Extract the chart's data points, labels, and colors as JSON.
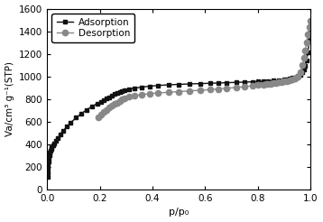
{
  "title": "",
  "xlabel": "p/p₀",
  "ylabel": "Va/cm³ g⁻¹(STP)",
  "xlim": [
    0.0,
    1.0
  ],
  "ylim": [
    0,
    1600
  ],
  "yticks": [
    0,
    200,
    400,
    600,
    800,
    1000,
    1200,
    1400,
    1600
  ],
  "xticks": [
    0.0,
    0.2,
    0.4,
    0.6,
    0.8,
    1.0
  ],
  "adsorption_x": [
    0.001,
    0.002,
    0.003,
    0.004,
    0.005,
    0.007,
    0.009,
    0.011,
    0.013,
    0.015,
    0.018,
    0.022,
    0.027,
    0.033,
    0.04,
    0.05,
    0.06,
    0.075,
    0.09,
    0.11,
    0.13,
    0.15,
    0.17,
    0.19,
    0.205,
    0.215,
    0.225,
    0.235,
    0.245,
    0.255,
    0.265,
    0.275,
    0.285,
    0.295,
    0.31,
    0.33,
    0.36,
    0.39,
    0.42,
    0.46,
    0.5,
    0.54,
    0.58,
    0.62,
    0.65,
    0.68,
    0.72,
    0.75,
    0.78,
    0.8,
    0.82,
    0.84,
    0.86,
    0.88,
    0.9,
    0.91,
    0.92,
    0.93,
    0.94,
    0.95,
    0.96,
    0.97,
    0.975,
    0.98,
    0.985,
    0.99,
    0.995,
    0.998
  ],
  "adsorption_y": [
    115,
    155,
    190,
    220,
    245,
    280,
    305,
    325,
    342,
    356,
    372,
    390,
    410,
    432,
    455,
    488,
    518,
    555,
    592,
    635,
    672,
    705,
    735,
    760,
    778,
    790,
    804,
    818,
    832,
    844,
    856,
    866,
    874,
    880,
    888,
    896,
    906,
    914,
    920,
    926,
    930,
    934,
    937,
    940,
    942,
    945,
    948,
    950,
    953,
    955,
    957,
    960,
    963,
    967,
    972,
    976,
    980,
    986,
    993,
    1002,
    1016,
    1038,
    1062,
    1095,
    1140,
    1210,
    1320,
    1450
  ],
  "desorption_x": [
    0.998,
    0.995,
    0.99,
    0.985,
    0.98,
    0.975,
    0.97,
    0.96,
    0.95,
    0.94,
    0.93,
    0.92,
    0.91,
    0.9,
    0.89,
    0.88,
    0.87,
    0.86,
    0.85,
    0.84,
    0.83,
    0.82,
    0.8,
    0.78,
    0.75,
    0.72,
    0.68,
    0.65,
    0.62,
    0.58,
    0.54,
    0.5,
    0.46,
    0.42,
    0.39,
    0.36,
    0.33,
    0.31,
    0.295,
    0.285,
    0.275,
    0.265,
    0.255,
    0.245,
    0.235,
    0.225,
    0.215,
    0.205,
    0.195
  ],
  "desorption_y": [
    1490,
    1440,
    1370,
    1300,
    1230,
    1165,
    1100,
    1040,
    1000,
    982,
    972,
    965,
    960,
    956,
    952,
    948,
    944,
    941,
    938,
    935,
    932,
    929,
    924,
    918,
    910,
    903,
    896,
    890,
    884,
    878,
    872,
    866,
    860,
    854,
    848,
    840,
    830,
    820,
    808,
    796,
    783,
    770,
    756,
    740,
    723,
    704,
    683,
    660,
    635
  ],
  "adsorption_color": "#111111",
  "desorption_color": "#888888",
  "adsorption_label": "Adsorption",
  "desorption_label": "Desorption",
  "adsorption_marker": "s",
  "desorption_marker": "o",
  "adsorption_markersize": 3.5,
  "desorption_markersize": 4.5,
  "linewidth": 1.0,
  "background_color": "#ffffff",
  "figsize": [
    3.58,
    2.46
  ],
  "dpi": 100
}
